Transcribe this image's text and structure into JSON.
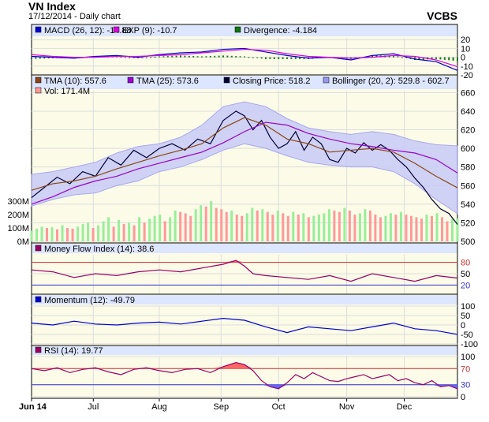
{
  "header": {
    "title": "VN Index",
    "subtitle": "17/12/2014 - Daily chart",
    "brand": "VCBS"
  },
  "chart_data": [
    {
      "type": "line",
      "panel": "macd",
      "legend": [
        {
          "label": "MACD (26, 12): -14.88",
          "color": "#0000cc"
        },
        {
          "label": "EXP (9): -10.7",
          "color": "#dd00dd"
        },
        {
          "label": "Divergence: -4.184",
          "color": "#117711"
        }
      ],
      "y_ticks": [
        "20",
        "10",
        "0",
        "-10",
        "-20"
      ],
      "ylim": [
        -20,
        22
      ],
      "series": [
        {
          "name": "MACD (26, 12)",
          "color": "#0000cc",
          "x": [
            0,
            0.05,
            0.1,
            0.15,
            0.2,
            0.25,
            0.3,
            0.35,
            0.4,
            0.45,
            0.5,
            0.55,
            0.6,
            0.65,
            0.7,
            0.75,
            0.8,
            0.85,
            0.9,
            0.95,
            1.0
          ],
          "values": [
            1,
            0,
            -1,
            1,
            2,
            0,
            3,
            5,
            6,
            9,
            10,
            6,
            2,
            -1,
            0,
            -3,
            2,
            4,
            -2,
            -5,
            -14.88
          ]
        },
        {
          "name": "EXP (9)",
          "color": "#dd00dd",
          "x": [
            0,
            0.05,
            0.1,
            0.15,
            0.2,
            0.25,
            0.3,
            0.35,
            0.4,
            0.45,
            0.5,
            0.55,
            0.6,
            0.65,
            0.7,
            0.75,
            0.8,
            0.85,
            0.9,
            0.95,
            1.0
          ],
          "values": [
            3,
            1,
            0,
            0,
            1,
            1,
            2,
            3,
            5,
            7,
            9,
            8,
            4,
            1,
            0,
            -1,
            0,
            2,
            1,
            -3,
            -10.7
          ]
        }
      ]
    },
    {
      "type": "line",
      "panel": "price",
      "legend": [
        {
          "label": "TMA (10): 557.6",
          "color": "#8b4513"
        },
        {
          "label": "TMA (25): 573.6",
          "color": "#9900cc"
        },
        {
          "label": "Closing Price: 518.2",
          "color": "#000033"
        },
        {
          "label": "Bollinger (20, 2): 529.8 - 602.7",
          "color": "#9999ee"
        },
        {
          "label": "Vol: 171.4M",
          "color": "#ff9999"
        }
      ],
      "y_ticks": [
        "660",
        "640",
        "620",
        "600",
        "580",
        "560",
        "540",
        "520",
        "500"
      ],
      "ylim": [
        500,
        662
      ],
      "volume_ticks": [
        "300M",
        "200M",
        "100M",
        "0M"
      ],
      "volume_ylim": [
        0,
        330
      ],
      "series": [
        {
          "name": "Closing Price",
          "color": "#000033",
          "x": [
            0,
            0.03,
            0.06,
            0.09,
            0.12,
            0.15,
            0.18,
            0.21,
            0.24,
            0.27,
            0.3,
            0.33,
            0.36,
            0.39,
            0.42,
            0.45,
            0.48,
            0.5,
            0.52,
            0.54,
            0.56,
            0.58,
            0.6,
            0.62,
            0.64,
            0.66,
            0.68,
            0.7,
            0.72,
            0.74,
            0.76,
            0.78,
            0.8,
            0.82,
            0.84,
            0.86,
            0.88,
            0.9,
            0.92,
            0.94,
            0.96,
            0.98,
            1.0
          ],
          "values": [
            547,
            558,
            569,
            562,
            575,
            570,
            590,
            582,
            598,
            590,
            600,
            605,
            598,
            610,
            605,
            630,
            640,
            635,
            620,
            630,
            612,
            600,
            605,
            618,
            598,
            612,
            605,
            588,
            585,
            600,
            595,
            606,
            598,
            604,
            598,
            588,
            580,
            568,
            558,
            545,
            535,
            530,
            518.2
          ]
        },
        {
          "name": "TMA (10)",
          "color": "#8b4513",
          "x": [
            0,
            0.05,
            0.1,
            0.15,
            0.2,
            0.25,
            0.3,
            0.35,
            0.4,
            0.45,
            0.5,
            0.55,
            0.6,
            0.65,
            0.7,
            0.75,
            0.8,
            0.85,
            0.9,
            0.95,
            1.0
          ],
          "values": [
            555,
            562,
            565,
            570,
            578,
            585,
            592,
            598,
            605,
            622,
            633,
            625,
            610,
            605,
            596,
            598,
            600,
            596,
            584,
            570,
            557.6
          ]
        },
        {
          "name": "TMA (25)",
          "color": "#9900cc",
          "x": [
            0,
            0.05,
            0.1,
            0.15,
            0.2,
            0.25,
            0.3,
            0.35,
            0.4,
            0.45,
            0.5,
            0.55,
            0.6,
            0.65,
            0.7,
            0.75,
            0.8,
            0.85,
            0.9,
            0.95,
            1.0
          ],
          "values": [
            540,
            548,
            558,
            565,
            570,
            578,
            584,
            590,
            596,
            606,
            618,
            628,
            625,
            616,
            610,
            605,
            602,
            598,
            595,
            588,
            573.6
          ]
        },
        {
          "name": "Bollinger upper",
          "x": [
            0,
            0.05,
            0.1,
            0.15,
            0.2,
            0.25,
            0.3,
            0.35,
            0.4,
            0.45,
            0.5,
            0.55,
            0.6,
            0.65,
            0.7,
            0.75,
            0.8,
            0.85,
            0.9,
            0.95,
            1.0
          ],
          "values": [
            572,
            575,
            580,
            585,
            595,
            602,
            605,
            612,
            625,
            645,
            650,
            645,
            632,
            622,
            618,
            615,
            618,
            615,
            608,
            604,
            602.7
          ]
        },
        {
          "name": "Bollinger lower",
          "x": [
            0,
            0.05,
            0.1,
            0.15,
            0.2,
            0.25,
            0.3,
            0.35,
            0.4,
            0.45,
            0.5,
            0.55,
            0.6,
            0.65,
            0.7,
            0.75,
            0.8,
            0.85,
            0.9,
            0.95,
            1.0
          ],
          "values": [
            538,
            545,
            550,
            552,
            560,
            565,
            575,
            580,
            588,
            598,
            605,
            600,
            592,
            585,
            582,
            580,
            580,
            575,
            562,
            545,
            529.8
          ]
        }
      ],
      "volume": [
        80,
        95,
        110,
        100,
        105,
        90,
        120,
        100,
        95,
        110,
        130,
        140,
        100,
        120,
        150,
        180,
        110,
        160,
        130,
        140,
        120,
        180,
        140,
        170,
        190,
        200,
        150,
        180,
        230,
        220,
        210,
        190,
        240,
        270,
        260,
        300,
        250,
        240,
        220,
        230,
        200,
        190,
        210,
        250,
        230,
        240,
        220,
        200,
        230,
        210,
        190,
        220,
        200,
        210,
        180,
        190,
        200,
        210,
        240,
        230,
        220,
        250,
        230,
        200,
        210,
        240,
        230,
        200,
        180,
        190,
        210,
        200,
        220,
        200,
        190,
        180,
        170,
        200,
        190,
        210,
        180,
        150,
        170,
        171.4
      ]
    },
    {
      "type": "line",
      "panel": "mfi",
      "legend": [
        {
          "label": "Money Flow Index (14): 38.6",
          "color": "#990066"
        }
      ],
      "y_ticks": [
        "80",
        "50",
        "20"
      ],
      "ylim": [
        0,
        100
      ],
      "ref_lines": [
        80,
        20
      ],
      "series": [
        {
          "name": "Money Flow Index (14)",
          "color": "#990066",
          "x": [
            0,
            0.05,
            0.1,
            0.15,
            0.2,
            0.25,
            0.3,
            0.35,
            0.4,
            0.45,
            0.48,
            0.5,
            0.52,
            0.55,
            0.6,
            0.65,
            0.7,
            0.75,
            0.8,
            0.85,
            0.9,
            0.95,
            1.0
          ],
          "values": [
            60,
            55,
            40,
            50,
            45,
            55,
            60,
            55,
            65,
            75,
            85,
            70,
            50,
            45,
            40,
            35,
            45,
            30,
            50,
            40,
            30,
            45,
            38.6
          ]
        }
      ]
    },
    {
      "type": "line",
      "panel": "momentum",
      "legend": [
        {
          "label": "Momentum (12): -49.79",
          "color": "#0000cc"
        }
      ],
      "y_ticks": [
        "100",
        "50",
        "0",
        "-50",
        "-100"
      ],
      "ylim": [
        -100,
        100
      ],
      "series": [
        {
          "name": "Momentum (12)",
          "color": "#0000cc",
          "x": [
            0,
            0.05,
            0.1,
            0.15,
            0.2,
            0.25,
            0.3,
            0.35,
            0.4,
            0.45,
            0.5,
            0.55,
            0.6,
            0.65,
            0.7,
            0.75,
            0.8,
            0.85,
            0.9,
            0.95,
            1.0
          ],
          "values": [
            10,
            0,
            20,
            5,
            0,
            10,
            15,
            5,
            20,
            35,
            25,
            -10,
            -40,
            -10,
            -20,
            -30,
            -10,
            10,
            -20,
            -30,
            -49.79
          ]
        }
      ]
    },
    {
      "type": "line",
      "panel": "rsi",
      "legend": [
        {
          "label": "RSI (14): 19.77",
          "color": "#990066"
        }
      ],
      "y_ticks": [
        "100",
        "70",
        "30",
        "0"
      ],
      "ylim": [
        0,
        100
      ],
      "ref_lines": [
        70,
        30
      ],
      "series": [
        {
          "name": "RSI (14)",
          "color": "#990066",
          "x": [
            0,
            0.03,
            0.06,
            0.09,
            0.12,
            0.15,
            0.18,
            0.21,
            0.24,
            0.27,
            0.3,
            0.33,
            0.36,
            0.39,
            0.42,
            0.45,
            0.48,
            0.5,
            0.52,
            0.54,
            0.56,
            0.58,
            0.6,
            0.62,
            0.64,
            0.66,
            0.68,
            0.7,
            0.72,
            0.74,
            0.76,
            0.78,
            0.8,
            0.82,
            0.84,
            0.86,
            0.88,
            0.9,
            0.92,
            0.94,
            0.96,
            0.98,
            1.0
          ],
          "values": [
            70,
            65,
            72,
            60,
            68,
            72,
            62,
            55,
            68,
            72,
            65,
            60,
            68,
            70,
            60,
            75,
            85,
            80,
            65,
            40,
            25,
            20,
            35,
            55,
            45,
            60,
            50,
            40,
            38,
            45,
            50,
            55,
            45,
            50,
            55,
            40,
            45,
            35,
            30,
            40,
            25,
            28,
            19.77
          ]
        }
      ]
    }
  ],
  "x_axis": {
    "labels": [
      "Jun 14",
      "Jul",
      "Aug",
      "Sep",
      "Oct",
      "Nov",
      "Dec"
    ],
    "positions": [
      0,
      0.145,
      0.3,
      0.445,
      0.58,
      0.74,
      0.875
    ]
  }
}
